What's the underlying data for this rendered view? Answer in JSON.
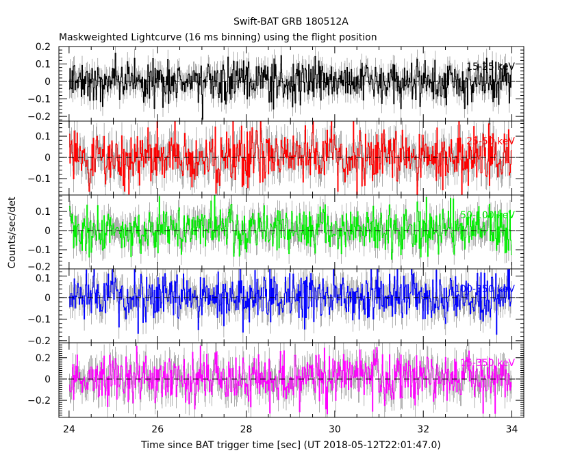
{
  "chart_data": {
    "type": "line",
    "title": "Swift-BAT GRB 180512A",
    "subtitle": "Maskweighted Lightcurve (16 ms binning) using the flight position",
    "xlabel": "Time since BAT trigger time [sec] (UT 2018-05-12T22:01:47.0)",
    "ylabel": "Counts/sec/det",
    "xlim": [
      23.77,
      34.27
    ],
    "xticks": [
      24,
      26,
      28,
      30,
      32,
      34
    ],
    "bin_width_s": 0.016,
    "grid": false,
    "panels": [
      {
        "name": "15-25 keV",
        "color": "#000000",
        "ylim": [
          -0.227,
          0.2
        ],
        "yticks": [
          -0.2,
          -0.1,
          0,
          0.1,
          0.2
        ],
        "noise_std": 0.06,
        "seed": 11
      },
      {
        "name": "25-50 keV",
        "color": "#ff0000",
        "ylim": [
          -0.177,
          0.171
        ],
        "yticks": [
          -0.1,
          0,
          0.1
        ],
        "noise_std": 0.07,
        "seed": 23
      },
      {
        "name": "50-100 keV",
        "color": "#00ee00",
        "ylim": [
          -0.2,
          0.186
        ],
        "yticks": [
          -0.2,
          -0.1,
          0,
          0.1
        ],
        "noise_std": 0.06,
        "seed": 37
      },
      {
        "name": "100-350 keV",
        "color": "#0000ff",
        "ylim": [
          -0.21,
          0.133
        ],
        "yticks": [
          -0.2,
          -0.1,
          0,
          0.1
        ],
        "noise_std": 0.06,
        "seed": 41
      },
      {
        "name": "15-350 keV",
        "color": "#ff00ff",
        "ylim": [
          -0.36,
          0.34
        ],
        "yticks": [
          -0.2,
          0,
          0.2
        ],
        "noise_std": 0.12,
        "seed": 53
      }
    ]
  }
}
